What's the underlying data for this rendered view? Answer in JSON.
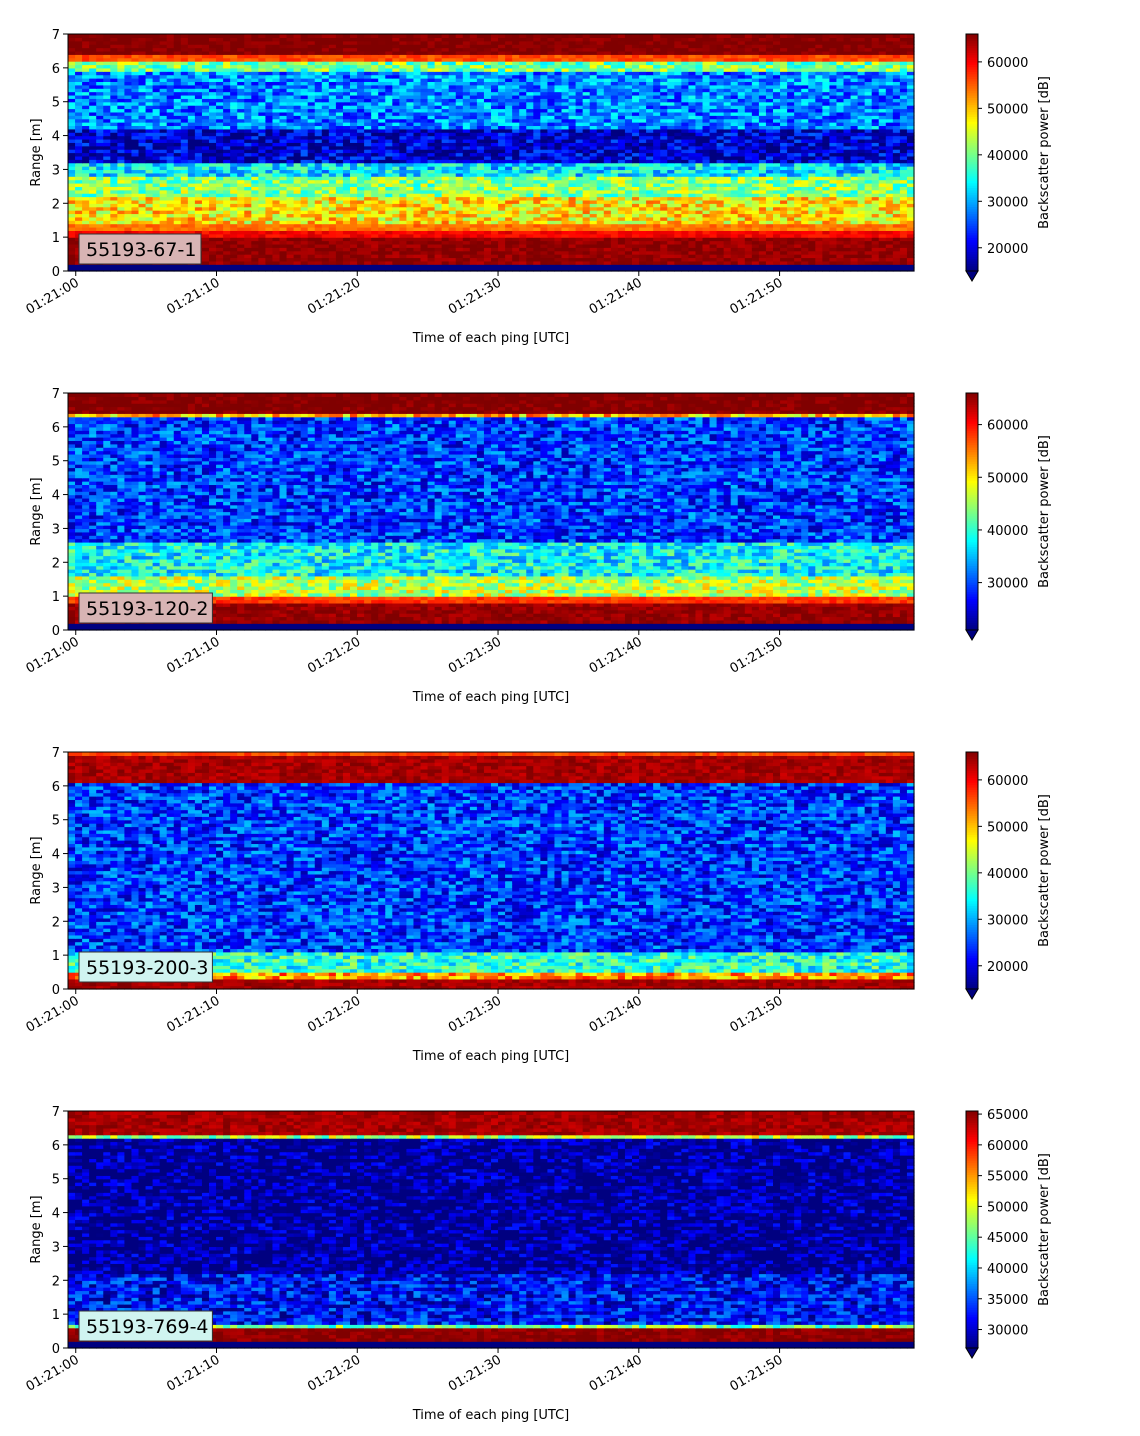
{
  "chart_data": [
    {
      "type": "heatmap",
      "label": "55193-67-1",
      "label_bg": "#d8b4b4",
      "ylabel": "Range [m]",
      "xlabel": "Time of each ping [UTC]",
      "ylim": [
        0,
        7
      ],
      "y_ticks": [
        "0",
        "1",
        "2",
        "3",
        "4",
        "5",
        "6",
        "7"
      ],
      "x_ticks": [
        "01:21:00",
        "01:21:10",
        "01:21:20",
        "01:21:30",
        "01:21:40",
        "01:21:50"
      ],
      "colorbar": {
        "label": "Backscatter power [dB]",
        "range": [
          15000,
          66000
        ],
        "ticks": [
          "20000",
          "30000",
          "40000",
          "50000",
          "60000"
        ],
        "tick_values": [
          20000,
          30000,
          40000,
          50000,
          60000
        ],
        "colormap": "jet",
        "extend": "min"
      },
      "bands": [
        {
          "from": 0.25,
          "to": 1.05,
          "value": 65000
        },
        {
          "from": 1.05,
          "to": 1.25,
          "value": 60000
        },
        {
          "from": 1.25,
          "to": 1.45,
          "value": 54000
        },
        {
          "from": 1.45,
          "to": 2.2,
          "value": 48000
        },
        {
          "from": 2.2,
          "to": 2.85,
          "value": 41000
        },
        {
          "from": 2.85,
          "to": 3.2,
          "value": 33000
        },
        {
          "from": 3.2,
          "to": 4.2,
          "value": 19000
        },
        {
          "from": 4.2,
          "to": 5.9,
          "value": 28000
        },
        {
          "from": 5.9,
          "to": 6.25,
          "value": 40000
        },
        {
          "from": 6.25,
          "to": 6.45,
          "value": 56000
        },
        {
          "from": 6.45,
          "to": 7.0,
          "value": 66000
        }
      ]
    },
    {
      "type": "heatmap",
      "label": "55193-120-2",
      "label_bg": "#d8b4b4",
      "ylabel": "Range [m]",
      "xlabel": "Time of each ping [UTC]",
      "ylim": [
        0,
        7
      ],
      "y_ticks": [
        "0",
        "1",
        "2",
        "3",
        "4",
        "5",
        "6",
        "7"
      ],
      "x_ticks": [
        "01:21:00",
        "01:21:10",
        "01:21:20",
        "01:21:30",
        "01:21:40",
        "01:21:50"
      ],
      "colorbar": {
        "label": "Backscatter power [dB]",
        "range": [
          21000,
          66000
        ],
        "ticks": [
          "30000",
          "40000",
          "50000",
          "60000"
        ],
        "tick_values": [
          30000,
          40000,
          50000,
          60000
        ],
        "colormap": "jet",
        "extend": "min"
      },
      "bands": [
        {
          "from": 0.25,
          "to": 0.8,
          "value": 65000
        },
        {
          "from": 0.8,
          "to": 1.0,
          "value": 58000
        },
        {
          "from": 1.0,
          "to": 1.6,
          "value": 46000
        },
        {
          "from": 1.6,
          "to": 2.6,
          "value": 38000
        },
        {
          "from": 2.6,
          "to": 6.3,
          "value": 29000
        },
        {
          "from": 6.3,
          "to": 6.4,
          "value": 52000
        },
        {
          "from": 6.4,
          "to": 7.0,
          "value": 66000
        }
      ]
    },
    {
      "type": "heatmap",
      "label": "55193-200-3",
      "label_bg": "#d0f4f0",
      "ylabel": "Range [m]",
      "xlabel": "Time of each ping [UTC]",
      "ylim": [
        0,
        7
      ],
      "y_ticks": [
        "0",
        "1",
        "2",
        "3",
        "4",
        "5",
        "6",
        "7"
      ],
      "x_ticks": [
        "01:21:00",
        "01:21:10",
        "01:21:20",
        "01:21:30",
        "01:21:40",
        "01:21:50"
      ],
      "colorbar": {
        "label": "Backscatter power [dB]",
        "range": [
          15000,
          66000
        ],
        "ticks": [
          "20000",
          "30000",
          "40000",
          "50000",
          "60000"
        ],
        "tick_values": [
          20000,
          30000,
          40000,
          50000,
          60000
        ],
        "colormap": "jet",
        "extend": "min"
      },
      "bands": [
        {
          "from": 0.0,
          "to": 0.3,
          "value": 64000
        },
        {
          "from": 0.3,
          "to": 0.5,
          "value": 52000
        },
        {
          "from": 0.5,
          "to": 1.1,
          "value": 36000
        },
        {
          "from": 1.1,
          "to": 6.1,
          "value": 24000
        },
        {
          "from": 6.1,
          "to": 6.9,
          "value": 64000
        },
        {
          "from": 6.9,
          "to": 7.0,
          "value": 56000
        }
      ]
    },
    {
      "type": "heatmap",
      "label": "55193-769-4",
      "label_bg": "#d0f4f0",
      "ylabel": "Range [m]",
      "xlabel": "Time of each ping [UTC]",
      "ylim": [
        0,
        7
      ],
      "y_ticks": [
        "0",
        "1",
        "2",
        "3",
        "4",
        "5",
        "6",
        "7"
      ],
      "x_ticks": [
        "01:21:00",
        "01:21:10",
        "01:21:20",
        "01:21:30",
        "01:21:40",
        "01:21:50"
      ],
      "colorbar": {
        "label": "Backscatter power [dB]",
        "range": [
          27000,
          65500
        ],
        "ticks": [
          "30000",
          "35000",
          "40000",
          "45000",
          "50000",
          "55000",
          "60000",
          "65000"
        ],
        "tick_values": [
          30000,
          35000,
          40000,
          45000,
          50000,
          55000,
          60000,
          65000
        ],
        "colormap": "jet",
        "extend": "min"
      },
      "bands": [
        {
          "from": 0.25,
          "to": 0.6,
          "value": 65000
        },
        {
          "from": 0.6,
          "to": 0.75,
          "value": 46000
        },
        {
          "from": 0.75,
          "to": 2.2,
          "value": 32000
        },
        {
          "from": 2.2,
          "to": 6.2,
          "value": 27500
        },
        {
          "from": 6.2,
          "to": 6.35,
          "value": 48000
        },
        {
          "from": 6.35,
          "to": 7.0,
          "value": 64000
        }
      ]
    }
  ]
}
